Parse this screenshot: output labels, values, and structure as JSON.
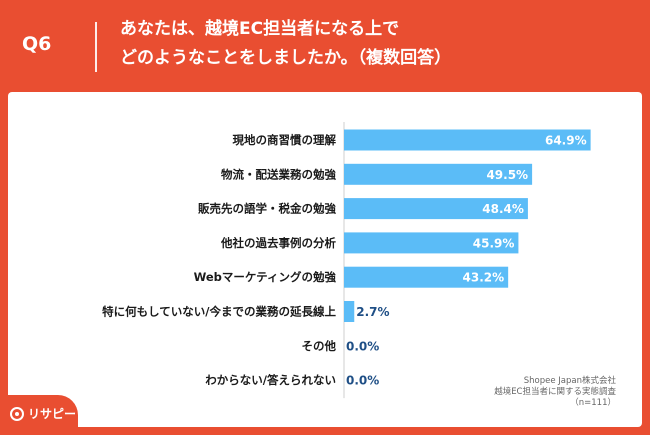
{
  "header": {
    "question_label": "Q6",
    "title_line1": "あなたは、越境EC担当者になる上で",
    "title_line2": "どのようなことをしましたか。（複数回答）"
  },
  "source": {
    "company": "Shopee Japan株式会社",
    "survey": "越境EC担当者に関する実態調査",
    "n": "（n=111）"
  },
  "logo": {
    "text": "リサピー"
  },
  "colors": {
    "background": "#e94e31",
    "bar": "#5bbcf7",
    "value_dark": "#1f4f86",
    "value_light": "#ffffff"
  },
  "chart_data": {
    "type": "bar",
    "orientation": "horizontal",
    "categories": [
      "現地の商習慣の理解",
      "物流・配送業務の勉強",
      "販売先の語学・税金の勉強",
      "他社の過去事例の分析",
      "Webマーケティングの勉強",
      "特に何もしていない/今までの業務の延長線上",
      "その他",
      "わからない/答えられない"
    ],
    "values": [
      64.9,
      49.5,
      48.4,
      45.9,
      43.2,
      2.7,
      0.0,
      0.0
    ],
    "value_labels": [
      "64.9%",
      "49.5%",
      "48.4%",
      "45.9%",
      "43.2%",
      "2.7%",
      "0.0%",
      "0.0%"
    ],
    "xlim": [
      0,
      100
    ]
  }
}
